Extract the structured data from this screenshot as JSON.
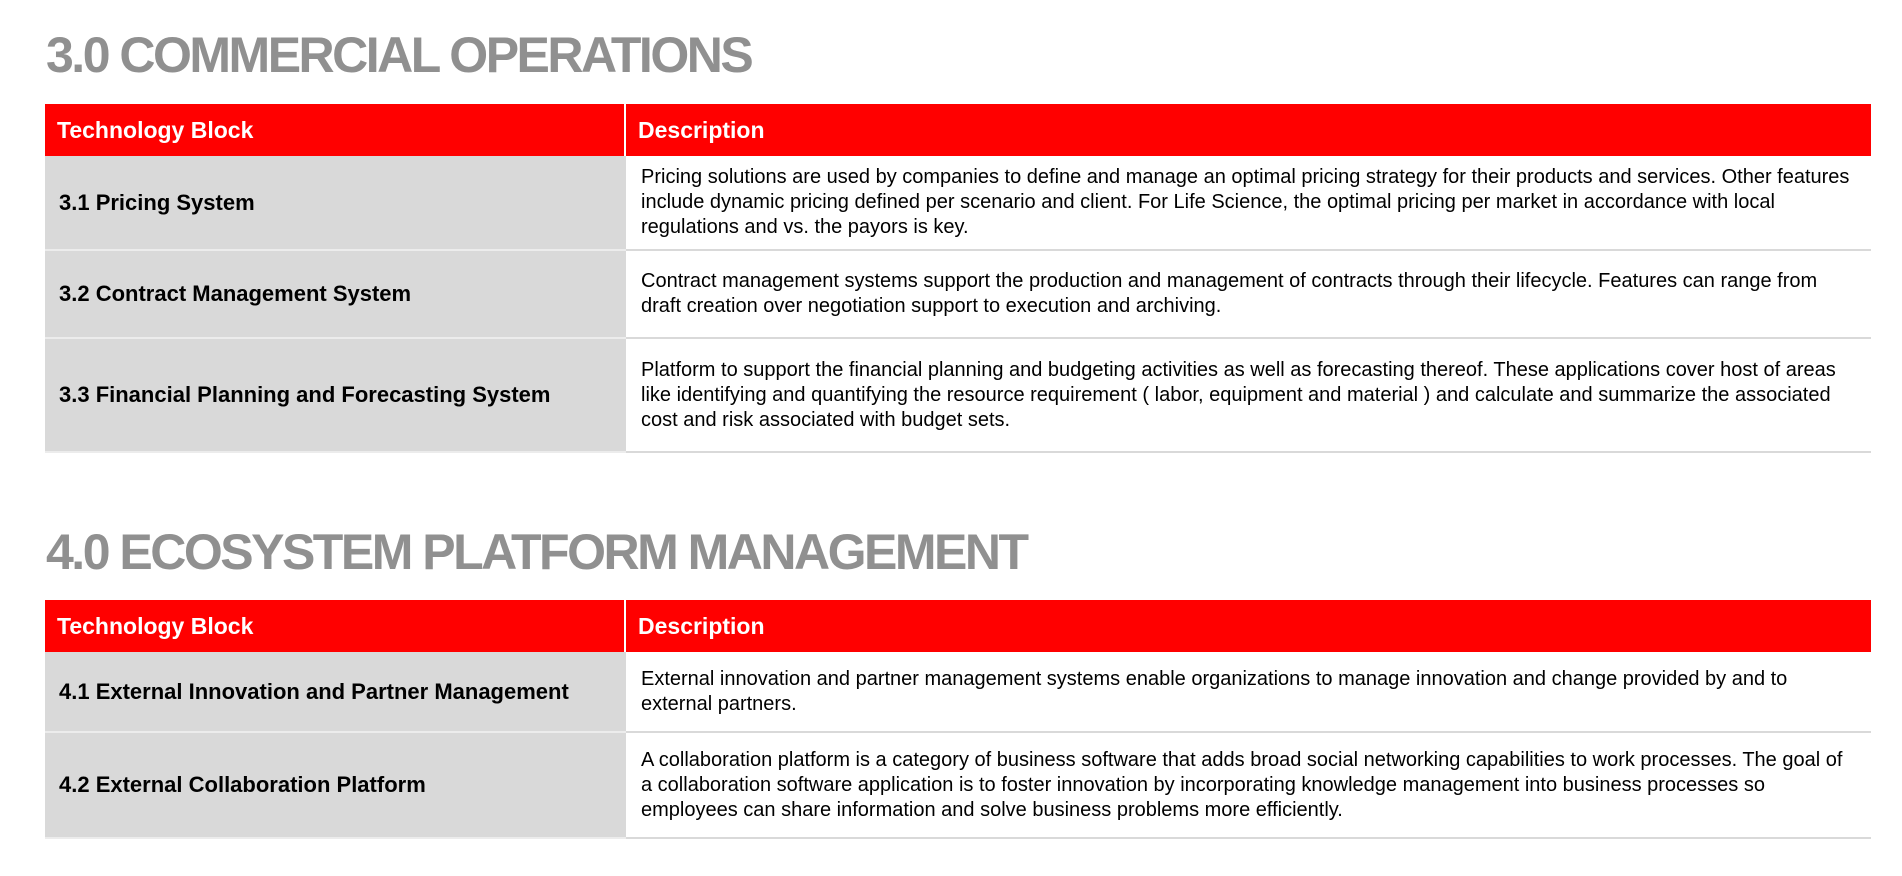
{
  "sections": [
    {
      "title": "3.0 COMMERCIAL OPERATIONS",
      "header": {
        "block": "Technology  Block",
        "description": "Description"
      },
      "rows": [
        {
          "block": "3.1 Pricing System",
          "description": "Pricing solutions are used by companies to define and manage an optimal pricing strategy for their products and services. Other features include dynamic pricing defined per scenario and client. For Life Science, the optimal pricing per market in accordance with local regulations and vs. the payors is key."
        },
        {
          "block": "3.2 Contract Management System",
          "description": "Contract management systems support the production and management of contracts through their lifecycle. Features can range from draft creation over negotiation support to execution and archiving."
        },
        {
          "block": "3.3 Financial Planning and Forecasting System",
          "description": "Platform to support the financial planning and budgeting activities as well as forecasting thereof. These applications cover host of areas like identifying and quantifying the resource  requirement ( labor, equipment and material ) and calculate and summarize the associated cost and risk associated with budget sets."
        }
      ]
    },
    {
      "title": "4.0 ECOSYSTEM PLATFORM MANAGEMENT",
      "header": {
        "block": "Technology  Block",
        "description": "Description"
      },
      "rows": [
        {
          "block": "4.1 External Innovation and Partner Management",
          "description": "External innovation and partner management systems enable organizations to manage innovation and change provided by and to external partners."
        },
        {
          "block": "4.2 External Collaboration Platform",
          "description": "A collaboration platform is a category of business software that adds broad social networking capabilities to work processes. The goal of a collaboration software application is to foster innovation by incorporating knowledge management into business processes so employees can share information and solve business problems more efficiently."
        }
      ]
    }
  ],
  "colors": {
    "header_red": "#ff0000",
    "title_gray": "#909090",
    "block_cell_gray": "#d9d9d9"
  }
}
